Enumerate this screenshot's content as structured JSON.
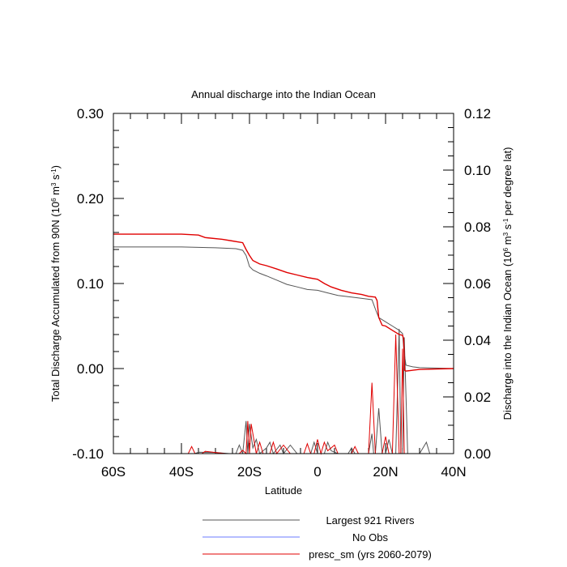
{
  "chart_data": {
    "type": "line",
    "title": "Annual discharge into the Indian Ocean",
    "xlabel": "Latitude",
    "ylabel_left": "Total Discharge Accumulated from 90N (10^6 m^3 s^-1)",
    "ylabel_right": "Discharge into the Indian Ocean (10^6 m^3 s^-1 per degree lat)",
    "xlim": [
      -60,
      40
    ],
    "ylim_left": [
      -0.1,
      0.3
    ],
    "ylim_right": [
      0.0,
      0.12
    ],
    "x_ticks": [
      {
        "value": -60,
        "label": "60S"
      },
      {
        "value": -40,
        "label": "40S"
      },
      {
        "value": -20,
        "label": "20S"
      },
      {
        "value": 0,
        "label": "0"
      },
      {
        "value": 20,
        "label": "20N"
      },
      {
        "value": 40,
        "label": "40N"
      }
    ],
    "y_left_ticks": [
      {
        "value": -0.1,
        "label": "-0.10"
      },
      {
        "value": 0.0,
        "label": "0.00"
      },
      {
        "value": 0.1,
        "label": "0.10"
      },
      {
        "value": 0.2,
        "label": "0.20"
      },
      {
        "value": 0.3,
        "label": "0.30"
      }
    ],
    "y_right_ticks": [
      {
        "value": 0.0,
        "label": "0.00"
      },
      {
        "value": 0.02,
        "label": "0.02"
      },
      {
        "value": 0.04,
        "label": "0.04"
      },
      {
        "value": 0.06,
        "label": "0.06"
      },
      {
        "value": 0.08,
        "label": "0.08"
      },
      {
        "value": 0.1,
        "label": "0.10"
      },
      {
        "value": 0.12,
        "label": "0.12"
      }
    ],
    "legend_position": "bottom",
    "series": [
      {
        "name": "Largest 921 Rivers",
        "color": "#555555",
        "accumulated": [
          [
            -60,
            0.143
          ],
          [
            -40,
            0.143
          ],
          [
            -30,
            0.142
          ],
          [
            -24,
            0.141
          ],
          [
            -22,
            0.139
          ],
          [
            -21,
            0.133
          ],
          [
            -20,
            0.12
          ],
          [
            -19,
            0.116
          ],
          [
            -17,
            0.112
          ],
          [
            -15,
            0.109
          ],
          [
            -12,
            0.104
          ],
          [
            -9,
            0.099
          ],
          [
            -6,
            0.096
          ],
          [
            -3,
            0.093
          ],
          [
            0,
            0.092
          ],
          [
            3,
            0.089
          ],
          [
            6,
            0.086
          ],
          [
            10,
            0.084
          ],
          [
            14,
            0.082
          ],
          [
            16,
            0.081
          ],
          [
            17,
            0.07
          ],
          [
            18,
            0.06
          ],
          [
            20,
            0.055
          ],
          [
            22,
            0.05
          ],
          [
            24,
            0.045
          ],
          [
            25,
            0.041
          ],
          [
            25.4,
            0.02
          ],
          [
            26,
            0.004
          ],
          [
            28,
            0.002
          ],
          [
            30,
            0.001
          ],
          [
            40,
            0.0
          ]
        ],
        "per_degree": [
          [
            -60,
            0.0
          ],
          [
            -36,
            0.0
          ],
          [
            -35,
            0.0005
          ],
          [
            -30,
            0.0004
          ],
          [
            -26,
            0.0
          ],
          [
            -24,
            0.0
          ],
          [
            -23,
            0.003
          ],
          [
            -22,
            0.0
          ],
          [
            -21,
            0.0115
          ],
          [
            -20.5,
            0.0
          ],
          [
            -20,
            0.0105
          ],
          [
            -19,
            0.002
          ],
          [
            -18,
            0.005
          ],
          [
            -17,
            0.0
          ],
          [
            -15,
            0.002
          ],
          [
            -14,
            0.004
          ],
          [
            -13,
            0.0
          ],
          [
            -11,
            0.003
          ],
          [
            -10,
            0.0
          ],
          [
            -8,
            0.003
          ],
          [
            -6,
            0.0
          ],
          [
            -2,
            0.0
          ],
          [
            -1,
            0.004
          ],
          [
            0,
            0.0
          ],
          [
            2,
            0.0
          ],
          [
            3,
            0.004
          ],
          [
            4,
            0.001
          ],
          [
            6,
            0.0
          ],
          [
            9,
            0.0
          ],
          [
            10,
            0.002
          ],
          [
            11,
            0.0
          ],
          [
            15,
            0.0
          ],
          [
            16,
            0.007
          ],
          [
            16.5,
            0.0
          ],
          [
            17,
            0.0
          ],
          [
            18,
            0.016
          ],
          [
            19,
            0.0
          ],
          [
            20,
            0.0
          ],
          [
            21,
            0.005
          ],
          [
            22,
            0.0
          ],
          [
            23,
            0.0
          ],
          [
            24,
            0.044
          ],
          [
            24.5,
            0.0
          ],
          [
            25,
            0.0
          ],
          [
            25.5,
            0.041
          ],
          [
            26.5,
            0.0
          ],
          [
            30,
            0.0
          ],
          [
            32,
            0.004
          ],
          [
            33,
            0.0
          ],
          [
            40,
            0.0
          ]
        ]
      },
      {
        "name": "No Obs",
        "color": "#6b7bff",
        "accumulated": [],
        "per_degree": []
      },
      {
        "name": "presc_sm (yrs 2060-2079)",
        "color": "#e00000",
        "accumulated": [
          [
            -60,
            0.158
          ],
          [
            -40,
            0.158
          ],
          [
            -35,
            0.157
          ],
          [
            -33,
            0.154
          ],
          [
            -28,
            0.152
          ],
          [
            -25,
            0.15
          ],
          [
            -22,
            0.148
          ],
          [
            -21,
            0.14
          ],
          [
            -20,
            0.133
          ],
          [
            -19,
            0.127
          ],
          [
            -17,
            0.123
          ],
          [
            -15,
            0.121
          ],
          [
            -12,
            0.117
          ],
          [
            -9,
            0.113
          ],
          [
            -6,
            0.11
          ],
          [
            -3,
            0.107
          ],
          [
            0,
            0.105
          ],
          [
            2,
            0.1
          ],
          [
            4,
            0.096
          ],
          [
            7,
            0.092
          ],
          [
            10,
            0.089
          ],
          [
            13,
            0.087
          ],
          [
            15,
            0.085
          ],
          [
            17,
            0.084
          ],
          [
            17.5,
            0.08
          ],
          [
            18,
            0.06
          ],
          [
            19,
            0.051
          ],
          [
            20,
            0.05
          ],
          [
            22,
            0.045
          ],
          [
            24,
            0.04
          ],
          [
            25,
            0.039
          ],
          [
            25.3,
            0.035
          ],
          [
            25.6,
            -0.002
          ],
          [
            26,
            -0.003
          ],
          [
            28,
            -0.002
          ],
          [
            30,
            -0.001
          ],
          [
            40,
            0.0
          ]
        ],
        "per_degree": [
          [
            -60,
            0.0
          ],
          [
            -38,
            0.0
          ],
          [
            -37,
            0.0025
          ],
          [
            -36,
            0.0
          ],
          [
            -34,
            0.0
          ],
          [
            -33,
            0.0008
          ],
          [
            -30,
            0.0004
          ],
          [
            -27,
            0.0
          ],
          [
            -23,
            0.0
          ],
          [
            -22,
            0.0012
          ],
          [
            -21,
            0.0
          ],
          [
            -20.5,
            0.0115
          ],
          [
            -20,
            0.0
          ],
          [
            -19.5,
            0.0105
          ],
          [
            -18,
            0.0
          ],
          [
            -17,
            0.004
          ],
          [
            -16,
            0.0
          ],
          [
            -14,
            0.0
          ],
          [
            -13,
            0.004
          ],
          [
            -12,
            0.0
          ],
          [
            -10,
            0.003
          ],
          [
            -8,
            0.0
          ],
          [
            -4,
            0.0
          ],
          [
            -3,
            0.0035
          ],
          [
            -2,
            0.0
          ],
          [
            -1,
            0.0
          ],
          [
            0,
            0.005
          ],
          [
            1,
            0.0
          ],
          [
            2,
            0.004
          ],
          [
            3,
            0.001
          ],
          [
            5,
            0.003
          ],
          [
            6,
            0.0
          ],
          [
            10,
            0.0
          ],
          [
            11,
            0.0025
          ],
          [
            12,
            0.0
          ],
          [
            15,
            0.0
          ],
          [
            16,
            0.025
          ],
          [
            17,
            0.0
          ],
          [
            19,
            0.0
          ],
          [
            20,
            0.006
          ],
          [
            21,
            0.0
          ],
          [
            22,
            0.0
          ],
          [
            23,
            0.042
          ],
          [
            24,
            0.0
          ],
          [
            24.5,
            0.0
          ],
          [
            25,
            0.037
          ],
          [
            25.5,
            0.0
          ],
          [
            40,
            0.0
          ]
        ]
      }
    ]
  }
}
